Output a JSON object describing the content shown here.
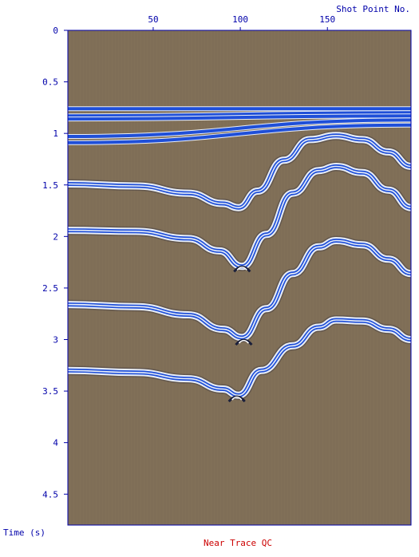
{
  "window": {
    "caption": "Near Trace QC",
    "caption_color": "#cc0000"
  },
  "colors": {
    "axis": "#0000aa",
    "background_fill": "#7f6e57",
    "reflector": "#1f4fd8",
    "reflector_halo": "#e8eef8"
  },
  "chart_data": {
    "type": "seismic-section",
    "title": "Near Trace QC",
    "xlabel": "Shot Point No.",
    "ylabel": "Time (s)",
    "xlim": [
      1,
      198
    ],
    "ylim": [
      0,
      4.8
    ],
    "y_inverted": true,
    "x_ticks": [
      {
        "value": 50,
        "label": "50"
      },
      {
        "value": 100,
        "label": "100"
      },
      {
        "value": 150,
        "label": "150"
      }
    ],
    "y_ticks": [
      {
        "value": 0,
        "label": "0"
      },
      {
        "value": 0.5,
        "label": "0.5"
      },
      {
        "value": 1,
        "label": "1"
      },
      {
        "value": 1.5,
        "label": "1.5"
      },
      {
        "value": 2,
        "label": "2"
      },
      {
        "value": 2.5,
        "label": "2.5"
      },
      {
        "value": 3,
        "label": "3"
      },
      {
        "value": 3.5,
        "label": "3.5"
      },
      {
        "value": 4,
        "label": "4"
      },
      {
        "value": 4.5,
        "label": "4.5"
      }
    ],
    "events": [
      {
        "kind": "direct",
        "points": [
          [
            1,
            0.76
          ],
          [
            198,
            0.76
          ]
        ]
      },
      {
        "kind": "direct",
        "points": [
          [
            1,
            0.83
          ],
          [
            198,
            0.8
          ]
        ]
      },
      {
        "kind": "refraction",
        "points": [
          [
            1,
            0.86
          ],
          [
            198,
            0.83
          ]
        ]
      },
      {
        "kind": "refraction",
        "points": [
          [
            1,
            1.03
          ],
          [
            198,
            0.87
          ]
        ]
      },
      {
        "kind": "refraction",
        "points": [
          [
            1,
            1.09
          ],
          [
            198,
            0.92
          ]
        ]
      },
      {
        "kind": "reflector",
        "points": [
          [
            1,
            1.49
          ],
          [
            40,
            1.51
          ],
          [
            70,
            1.58
          ],
          [
            90,
            1.68
          ],
          [
            99,
            1.72
          ],
          [
            110,
            1.56
          ],
          [
            125,
            1.26
          ],
          [
            140,
            1.06
          ],
          [
            155,
            1.02
          ],
          [
            170,
            1.06
          ],
          [
            185,
            1.18
          ],
          [
            198,
            1.32
          ]
        ]
      },
      {
        "kind": "reflector",
        "points": [
          [
            1,
            1.94
          ],
          [
            40,
            1.95
          ],
          [
            70,
            2.02
          ],
          [
            88,
            2.14
          ],
          [
            101,
            2.29
          ],
          [
            115,
            1.98
          ],
          [
            130,
            1.58
          ],
          [
            145,
            1.36
          ],
          [
            155,
            1.32
          ],
          [
            170,
            1.38
          ],
          [
            185,
            1.55
          ],
          [
            198,
            1.72
          ]
        ]
      },
      {
        "kind": "reflector",
        "points": [
          [
            1,
            2.66
          ],
          [
            40,
            2.68
          ],
          [
            70,
            2.76
          ],
          [
            90,
            2.9
          ],
          [
            101,
            2.98
          ],
          [
            115,
            2.7
          ],
          [
            130,
            2.36
          ],
          [
            145,
            2.1
          ],
          [
            155,
            2.04
          ],
          [
            170,
            2.08
          ],
          [
            185,
            2.22
          ],
          [
            198,
            2.36
          ]
        ]
      },
      {
        "kind": "reflector",
        "points": [
          [
            1,
            3.3
          ],
          [
            40,
            3.32
          ],
          [
            70,
            3.38
          ],
          [
            90,
            3.48
          ],
          [
            99,
            3.54
          ],
          [
            112,
            3.3
          ],
          [
            130,
            3.06
          ],
          [
            145,
            2.88
          ],
          [
            155,
            2.81
          ],
          [
            170,
            2.82
          ],
          [
            185,
            2.9
          ],
          [
            198,
            3.0
          ]
        ]
      }
    ],
    "diffractions": [
      {
        "x": 101,
        "y": 2.31
      },
      {
        "x": 102,
        "y": 3.02
      },
      {
        "x": 98,
        "y": 3.57
      }
    ]
  }
}
